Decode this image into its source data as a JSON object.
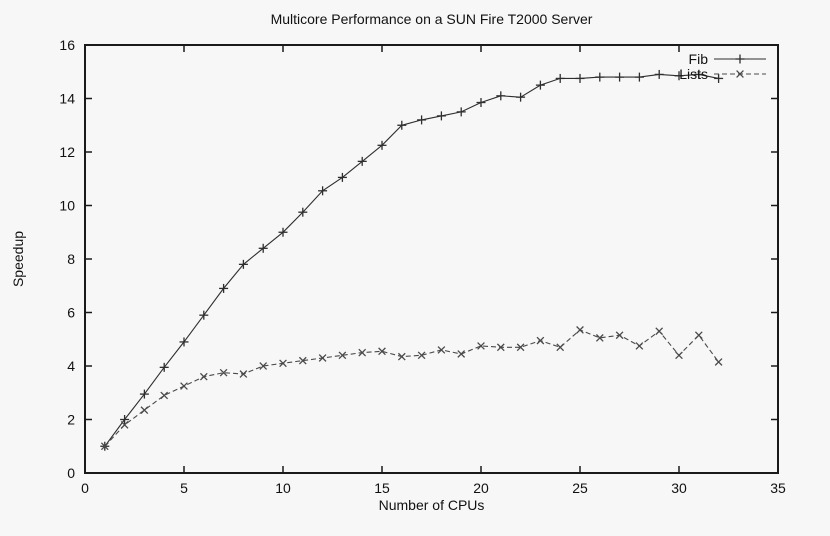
{
  "colors": {
    "background": "#f7f7f7",
    "axis": "#1a1a1a",
    "text": "#111111"
  },
  "chart_data": {
    "type": "line",
    "title": "Multicore Performance on a SUN Fire T2000 Server",
    "xlabel": "Number of CPUs",
    "ylabel": "Speedup",
    "xlim": [
      0,
      35
    ],
    "ylim": [
      0,
      16
    ],
    "xticks": [
      0,
      5,
      10,
      15,
      20,
      25,
      30,
      35
    ],
    "yticks": [
      0,
      2,
      4,
      6,
      8,
      10,
      12,
      14,
      16
    ],
    "grid": false,
    "legend_position": "inside-top-right",
    "x": [
      1,
      2,
      3,
      4,
      5,
      6,
      7,
      8,
      9,
      10,
      11,
      12,
      13,
      14,
      15,
      16,
      17,
      18,
      19,
      20,
      21,
      22,
      23,
      24,
      25,
      26,
      27,
      28,
      29,
      30,
      31,
      32
    ],
    "series": [
      {
        "name": "Fib",
        "linestyle": "solid",
        "marker": "plus",
        "color": "#2e2e2e",
        "values": [
          1.0,
          2.0,
          2.95,
          3.95,
          4.9,
          5.9,
          6.9,
          7.8,
          8.4,
          9.0,
          9.75,
          10.55,
          11.05,
          11.65,
          12.25,
          13.0,
          13.2,
          13.35,
          13.5,
          13.85,
          14.1,
          14.05,
          14.5,
          14.75,
          14.75,
          14.8,
          14.8,
          14.8,
          14.9,
          14.85,
          14.9,
          14.75
        ]
      },
      {
        "name": "Lists",
        "linestyle": "dashed",
        "marker": "cross",
        "color": "#4a4a4a",
        "values": [
          1.0,
          1.8,
          2.35,
          2.9,
          3.25,
          3.6,
          3.75,
          3.7,
          4.0,
          4.1,
          4.2,
          4.3,
          4.4,
          4.5,
          4.55,
          4.35,
          4.4,
          4.6,
          4.45,
          4.75,
          4.7,
          4.7,
          4.95,
          4.7,
          5.35,
          5.05,
          5.15,
          4.75,
          5.3,
          4.4,
          5.15,
          4.15
        ]
      }
    ]
  }
}
